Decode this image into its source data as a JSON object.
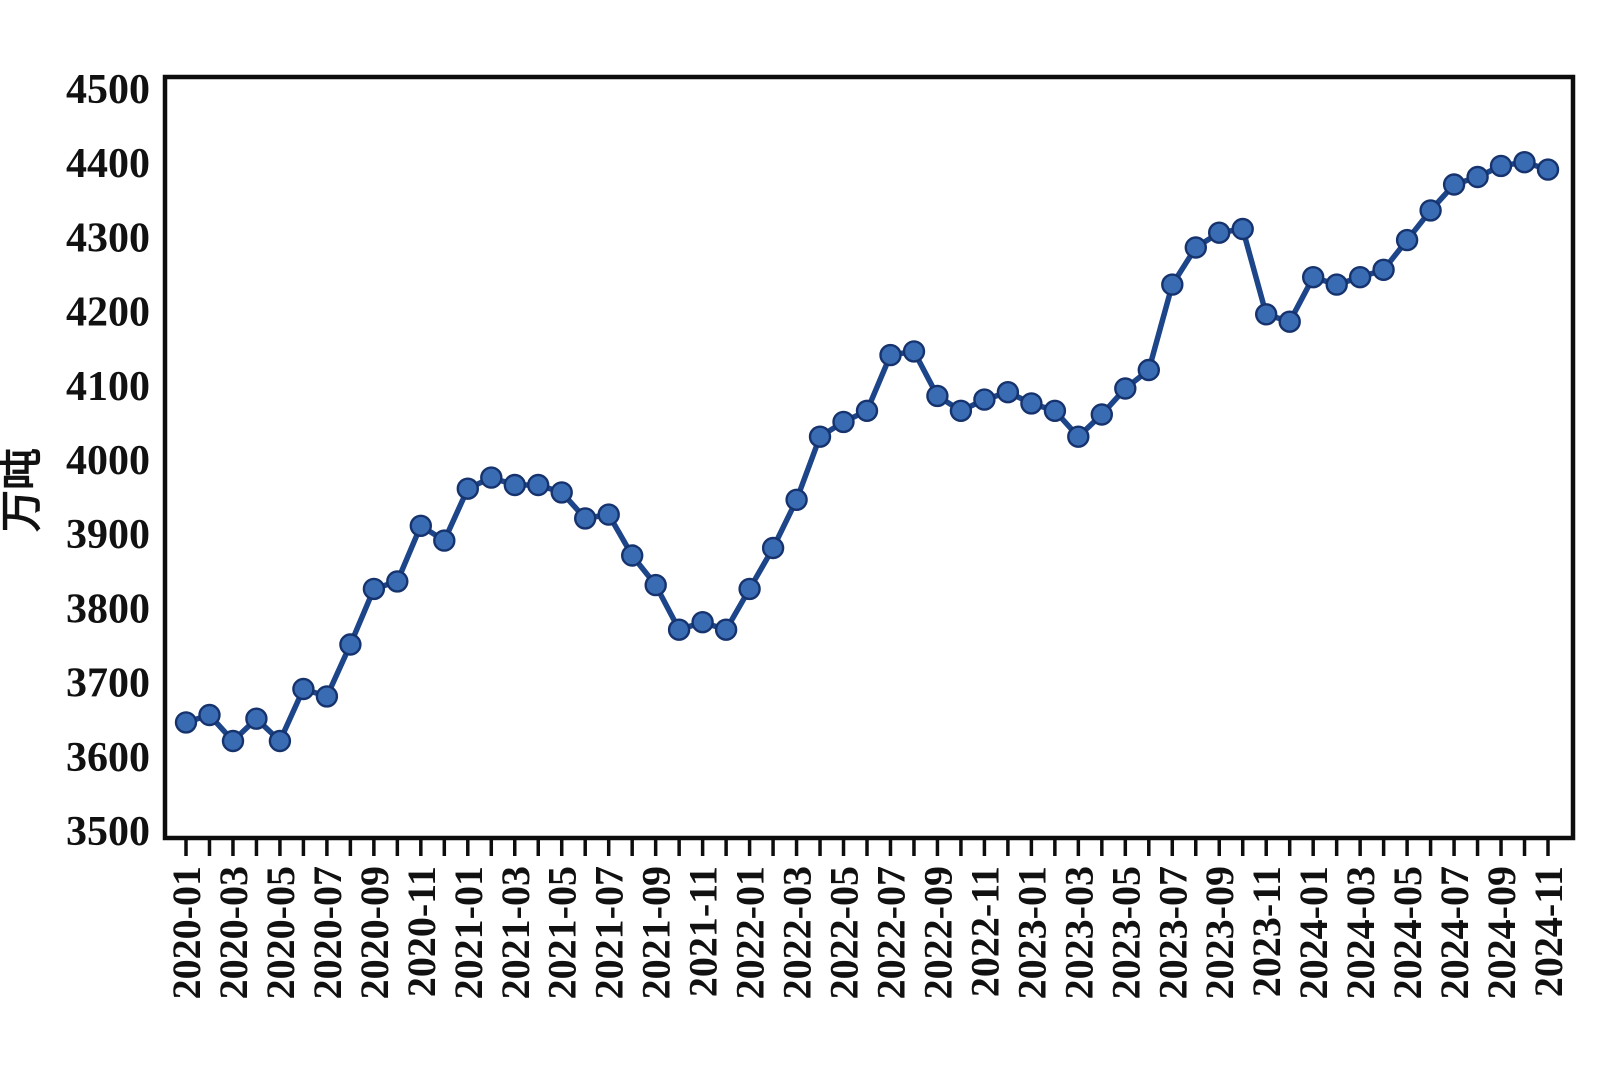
{
  "chart_data": {
    "type": "line",
    "title": "",
    "xlabel": "",
    "ylabel": "万吨",
    "ylim": [
      3500,
      4500
    ],
    "ytick_step": 100,
    "ytick_labels": [
      "4500",
      "4400",
      "4300",
      "4200",
      "4100",
      "4000",
      "3900",
      "3800",
      "3700",
      "3600",
      "3500"
    ],
    "xtick_label_every": 2,
    "grid": false,
    "legend_position": "none",
    "x": [
      "2020-01",
      "2020-02",
      "2020-03",
      "2020-04",
      "2020-05",
      "2020-06",
      "2020-07",
      "2020-08",
      "2020-09",
      "2020-10",
      "2020-11",
      "2020-12",
      "2021-01",
      "2021-02",
      "2021-03",
      "2021-04",
      "2021-05",
      "2021-06",
      "2021-07",
      "2021-08",
      "2021-09",
      "2021-10",
      "2021-11",
      "2021-12",
      "2022-01",
      "2022-02",
      "2022-03",
      "2022-04",
      "2022-05",
      "2022-06",
      "2022-07",
      "2022-08",
      "2022-09",
      "2022-10",
      "2022-11",
      "2022-12",
      "2023-01",
      "2023-02",
      "2023-03",
      "2023-04",
      "2023-05",
      "2023-06",
      "2023-07",
      "2023-08",
      "2023-09",
      "2023-10",
      "2023-11",
      "2023-12",
      "2024-01",
      "2024-02",
      "2024-03",
      "2024-04",
      "2024-05",
      "2024-06",
      "2024-07",
      "2024-08",
      "2024-09",
      "2024-10",
      "2024-11"
    ],
    "values": [
      3645,
      3655,
      3620,
      3650,
      3620,
      3690,
      3680,
      3750,
      3825,
      3835,
      3910,
      3890,
      3960,
      3975,
      3965,
      3965,
      3955,
      3920,
      3925,
      3870,
      3830,
      3770,
      3780,
      3770,
      3825,
      3880,
      3945,
      4030,
      4050,
      4065,
      4140,
      4145,
      4085,
      4065,
      4080,
      4090,
      4075,
      4065,
      4030,
      4060,
      4095,
      4120,
      4235,
      4285,
      4305,
      4310,
      4195,
      4185,
      4245,
      4235,
      4245,
      4255,
      4295,
      4335,
      4370,
      4380,
      4395,
      4400,
      4390
    ],
    "colors": {
      "line": "#1d4589",
      "marker_fill": "#3a6cb4",
      "marker_edge": "#16336e",
      "frame": "#0d0d0d",
      "text": "#111111",
      "background": "#ffffff"
    }
  }
}
